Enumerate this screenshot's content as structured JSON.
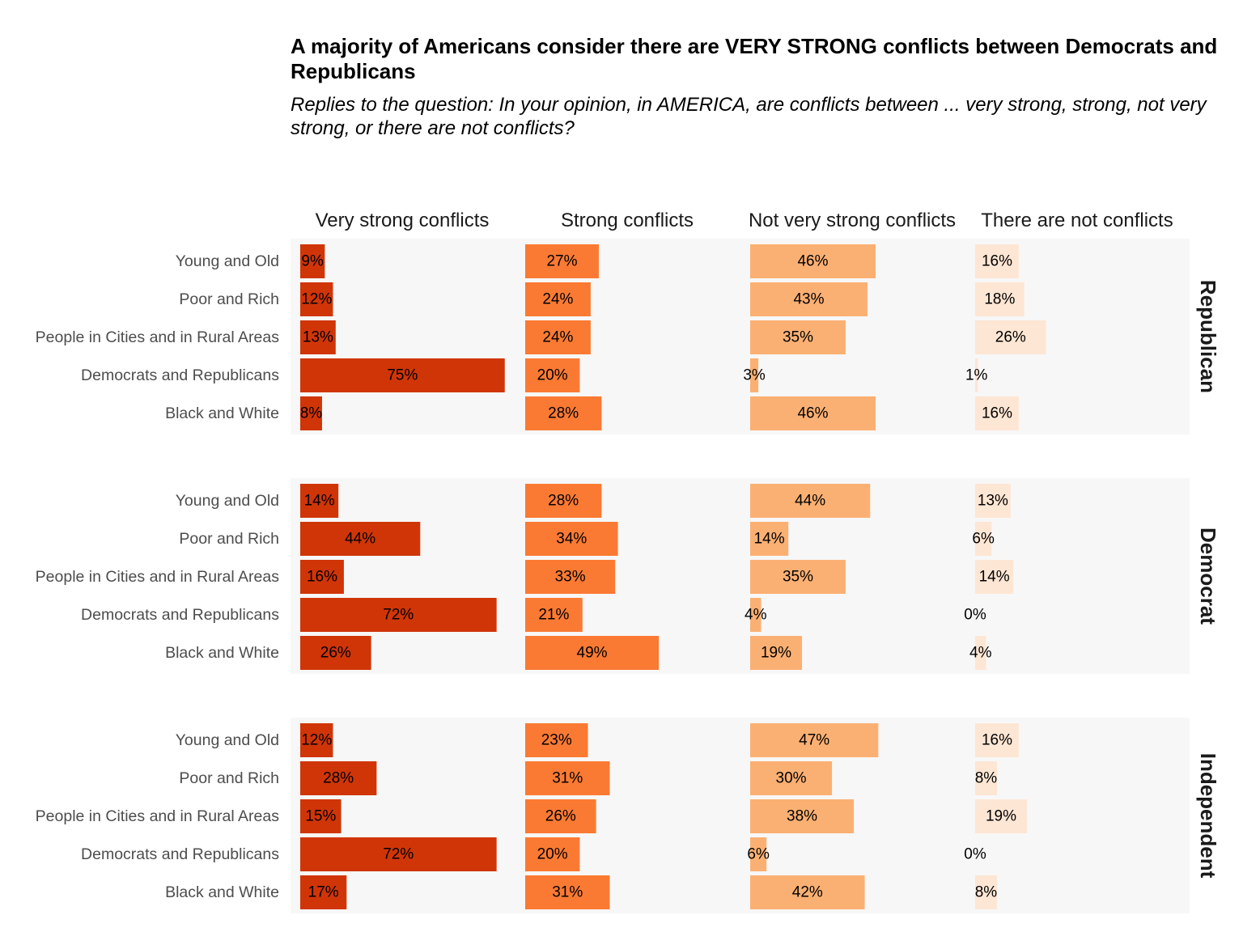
{
  "title": "A majority of Americans consider there are VERY STRONG conflicts between Democrats and Republicans",
  "subtitle": "Replies to the question: In your opinion, in AMERICA, are conflicts between ... very strong, strong, not very strong, or there are not conflicts?",
  "chart_data": {
    "type": "bar",
    "orientation": "horizontal",
    "facet_columns": [
      "Very strong conflicts",
      "Strong conflicts",
      "Not very strong conflicts",
      "There are not conflicts"
    ],
    "facet_rows": [
      "Republican",
      "Democrat",
      "Independent"
    ],
    "categories": [
      "Young and Old",
      "Poor and Rich",
      "People in Cities and in Rural Areas",
      "Democrats and Republicans",
      "Black and White"
    ],
    "colors": [
      "#d03508",
      "#fb7a33",
      "#fbb073",
      "#fee6d4"
    ],
    "panel_background": "#f7f7f7",
    "value_unit": "%",
    "grid": false,
    "legend": "none",
    "values": {
      "Republican": [
        [
          9,
          27,
          46,
          16
        ],
        [
          12,
          24,
          43,
          18
        ],
        [
          13,
          24,
          35,
          26
        ],
        [
          75,
          20,
          3,
          1
        ],
        [
          8,
          28,
          46,
          16
        ]
      ],
      "Democrat": [
        [
          14,
          28,
          44,
          13
        ],
        [
          44,
          34,
          14,
          6
        ],
        [
          16,
          33,
          35,
          14
        ],
        [
          72,
          21,
          4,
          0
        ],
        [
          26,
          49,
          19,
          4
        ]
      ],
      "Independent": [
        [
          12,
          23,
          47,
          16
        ],
        [
          28,
          31,
          30,
          8
        ],
        [
          15,
          26,
          38,
          19
        ],
        [
          72,
          20,
          6,
          0
        ],
        [
          17,
          31,
          42,
          8
        ]
      ]
    }
  }
}
